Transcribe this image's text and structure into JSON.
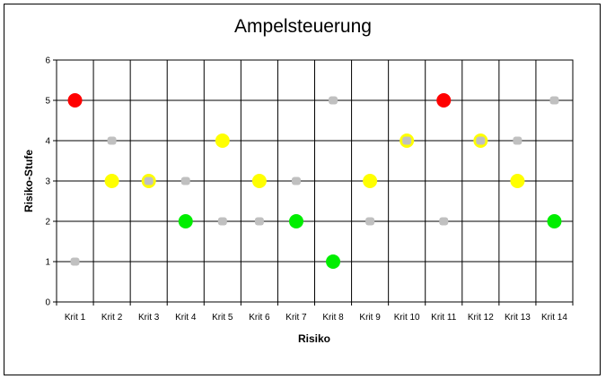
{
  "chart_data": {
    "type": "scatter",
    "title": "Ampelsteuerung",
    "xlabel": "Risiko",
    "ylabel": "Risiko-Stufe",
    "categories": [
      "Krit 1",
      "Krit 2",
      "Krit 3",
      "Krit 4",
      "Krit 5",
      "Krit 6",
      "Krit 7",
      "Krit 8",
      "Krit 9",
      "Krit 10",
      "Krit 11",
      "Krit 12",
      "Krit 13",
      "Krit 14"
    ],
    "ylim": [
      0,
      6
    ],
    "yticks": [
      "0",
      "1",
      "2",
      "3",
      "4",
      "5",
      "6"
    ],
    "grid": true,
    "series": [
      {
        "color": "#c0c0c0",
        "marker": "small",
        "values": [
          1,
          4,
          3,
          3,
          2,
          2,
          3,
          5,
          2,
          4,
          2,
          4,
          4,
          5
        ]
      },
      {
        "color": null,
        "marker": "large",
        "values": [
          5,
          3,
          3,
          2,
          4,
          3,
          2,
          1,
          3,
          4,
          5,
          4,
          3,
          2
        ],
        "colors": [
          "#ff0000",
          "#ffff00",
          "#ffff00",
          "#00ee00",
          "#ffff00",
          "#ffff00",
          "#00ee00",
          "#00ee00",
          "#ffff00",
          "#ffff00",
          "#ff0000",
          "#ffff00",
          "#ffff00",
          "#00ee00"
        ]
      }
    ]
  }
}
